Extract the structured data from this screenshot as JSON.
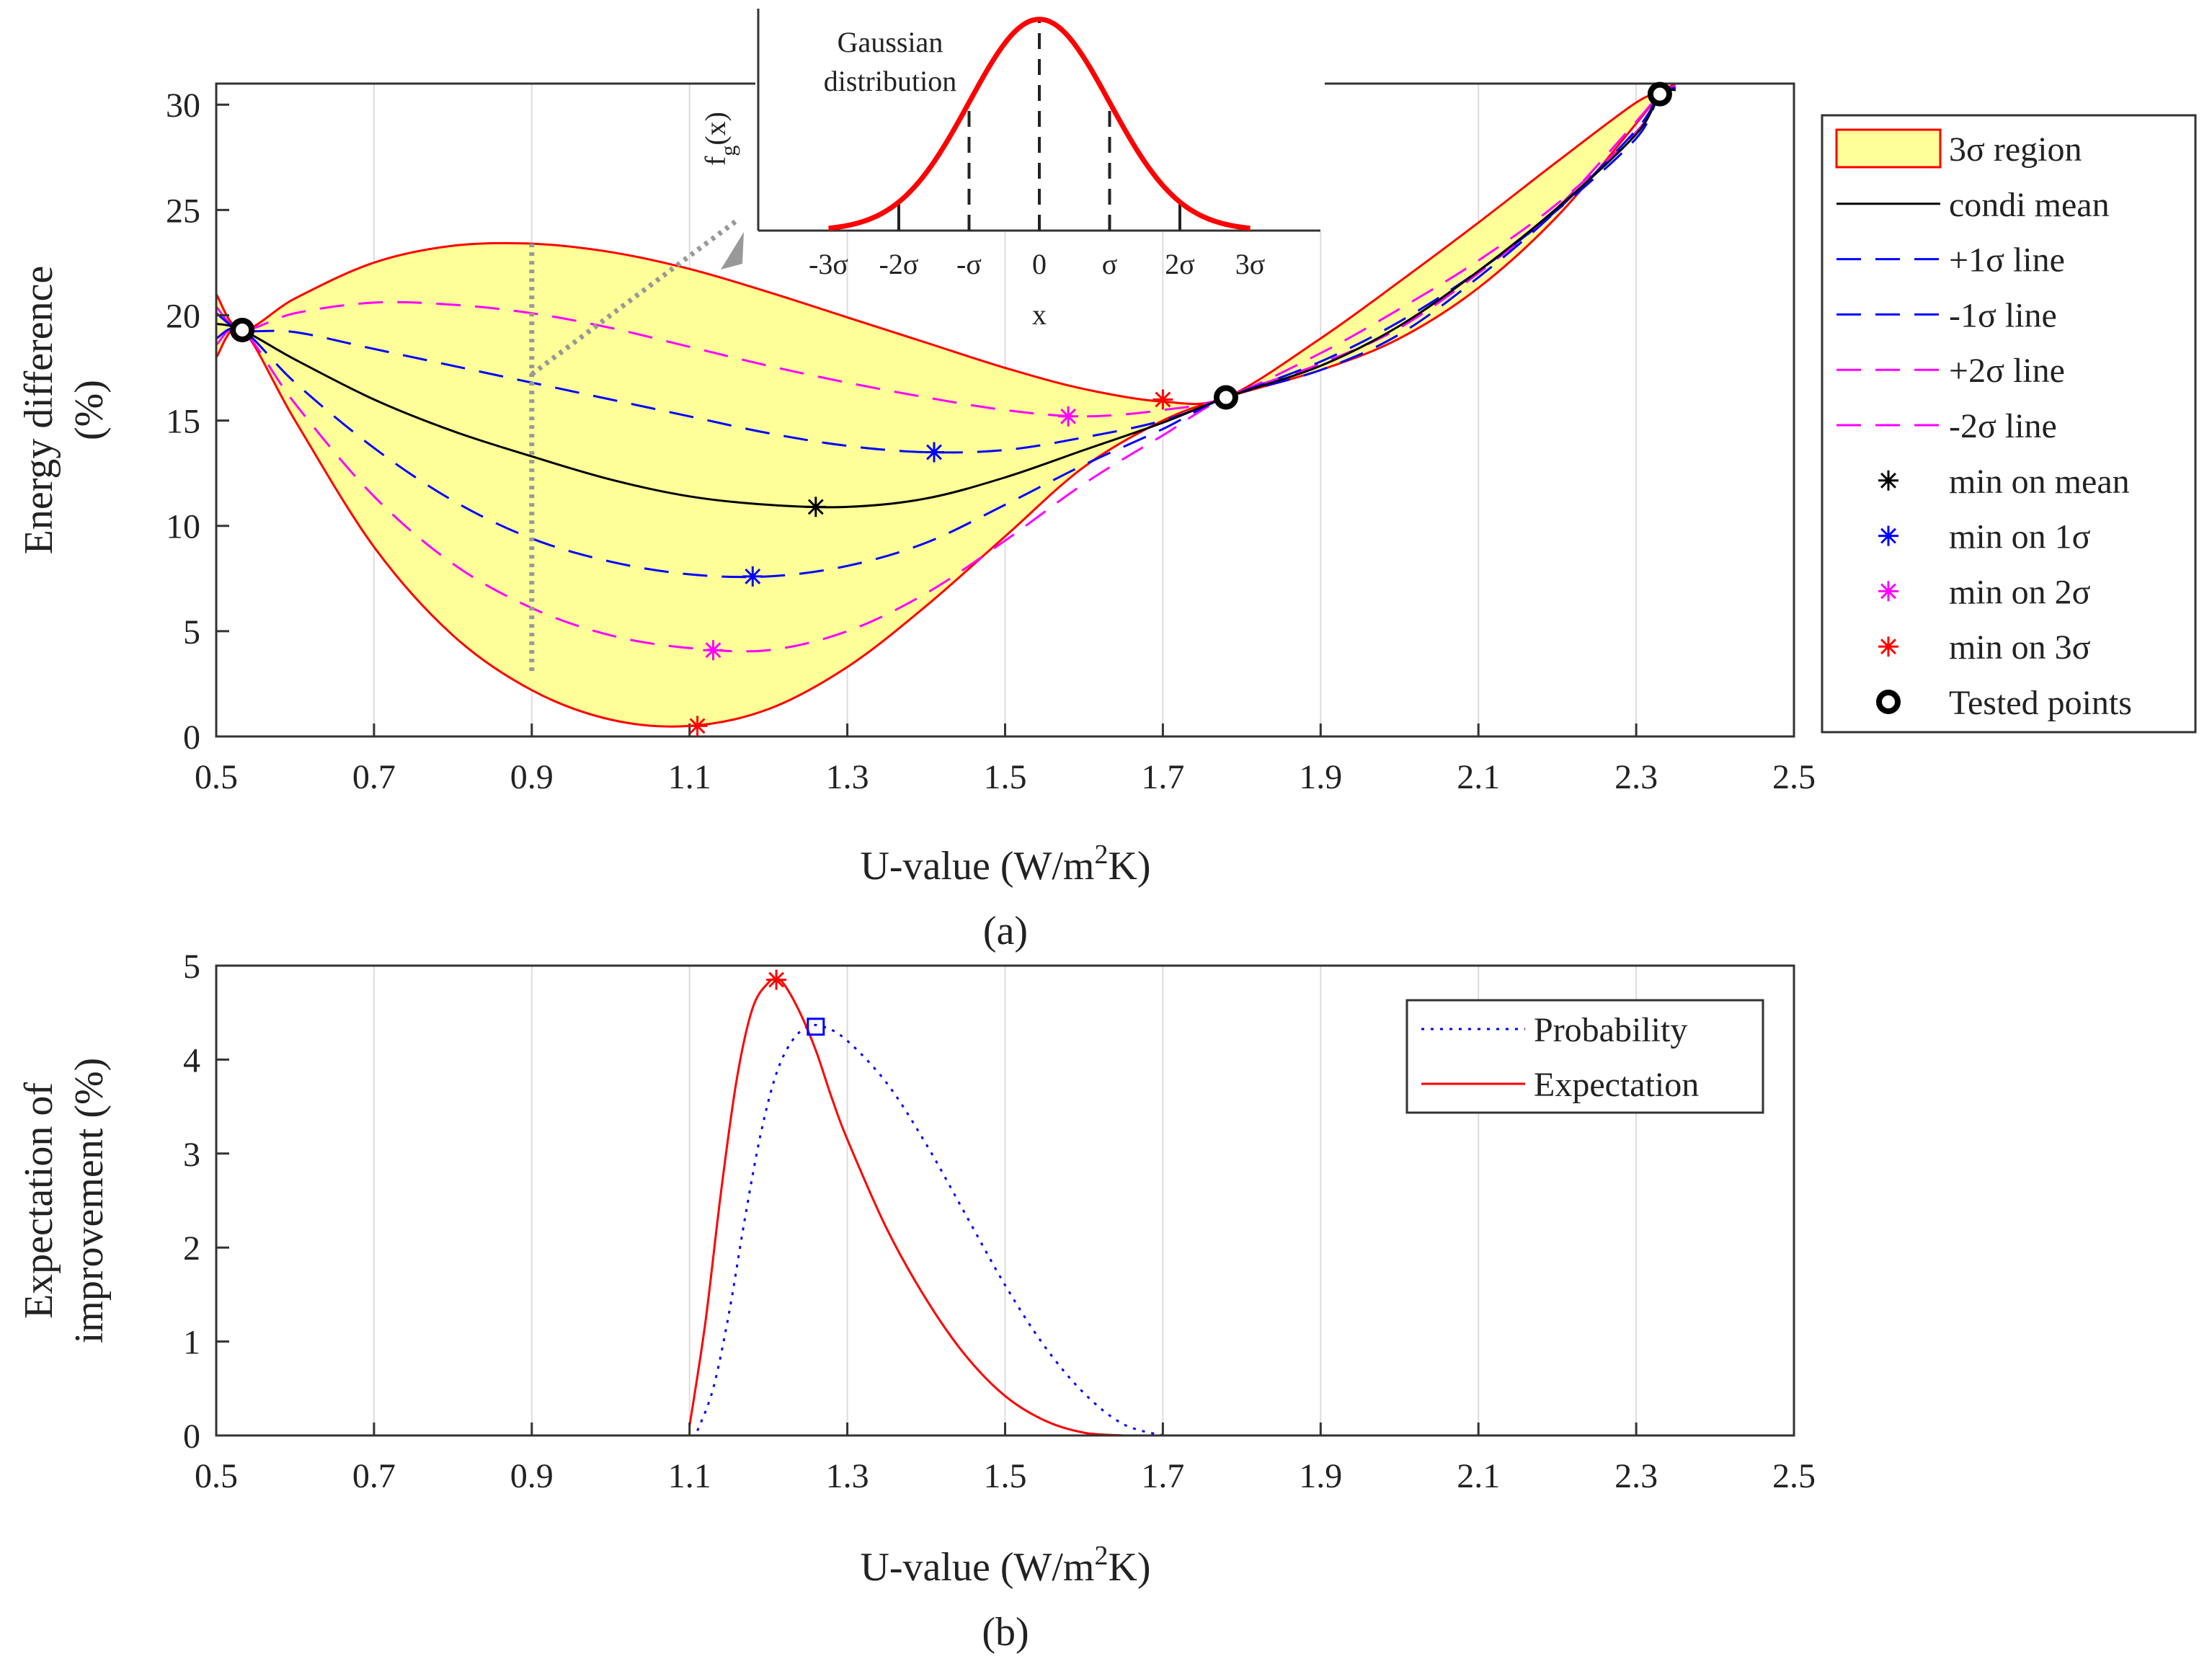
{
  "colors": {
    "fill": "#ffff99",
    "red": "#ff0000",
    "blue": "#0000ff",
    "magenta": "#ff00ff",
    "black": "#000000",
    "gray": "#999999",
    "grid": "#dddddd"
  },
  "chart_data": [
    {
      "id": "a",
      "type": "line",
      "caption": "(a)",
      "xlabel_prefix": "U-value (W/m",
      "xlabel_sup": "2",
      "xlabel_suffix": "K)",
      "ylabel_line1": "Energy difference",
      "ylabel_line2": "(%)",
      "xlim": [
        0.5,
        2.5
      ],
      "ylim": [
        0,
        31
      ],
      "xticks": [
        0.5,
        0.7,
        0.9,
        1.1,
        1.3,
        1.5,
        1.7,
        1.9,
        2.1,
        2.3,
        2.5
      ],
      "xtick_labels": [
        "0.5",
        "0.7",
        "0.9",
        "1.1",
        "1.3",
        "1.5",
        "1.7",
        "1.9",
        "2.1",
        "2.3",
        "2.5"
      ],
      "yticks": [
        0,
        5,
        10,
        15,
        20,
        25,
        30
      ],
      "ytick_labels": [
        "0",
        "5",
        "10",
        "15",
        "20",
        "25",
        "30"
      ],
      "grid_x": true,
      "x": [
        0.5,
        0.533,
        0.6,
        0.7,
        0.8,
        0.9,
        1.0,
        1.1,
        1.2,
        1.3,
        1.4,
        1.5,
        1.6,
        1.7,
        1.78,
        1.9,
        2.0,
        2.1,
        2.2,
        2.3,
        2.33,
        2.35
      ],
      "series": [
        {
          "name": "3σ region upper",
          "values": [
            21.0,
            19.3,
            20.8,
            22.5,
            23.3,
            23.4,
            23.0,
            22.2,
            21.1,
            19.9,
            18.7,
            17.5,
            16.5,
            15.9,
            16.1,
            18.9,
            21.6,
            24.4,
            27.3,
            30.1,
            30.5,
            30.8
          ]
        },
        {
          "name": "3σ region lower",
          "values": [
            18.0,
            19.3,
            15.0,
            9.0,
            4.8,
            2.2,
            0.8,
            0.5,
            1.3,
            3.3,
            6.2,
            9.5,
            12.8,
            15.0,
            16.1,
            17.4,
            18.9,
            21.3,
            24.7,
            29.1,
            30.5,
            31.0
          ]
        },
        {
          "name": "+2σ line",
          "values": [
            20.4,
            19.3,
            20.1,
            20.6,
            20.5,
            20.1,
            19.4,
            18.5,
            17.6,
            16.8,
            16.1,
            15.5,
            15.2,
            15.5,
            16.1,
            18.2,
            20.3,
            22.6,
            25.3,
            28.7,
            30.5,
            30.7
          ]
        },
        {
          "name": "-2σ line",
          "values": [
            18.6,
            19.3,
            15.8,
            11.4,
            8.2,
            6.1,
            4.8,
            4.2,
            4.1,
            5.0,
            6.8,
            9.3,
            12.0,
            14.3,
            16.1,
            17.7,
            19.4,
            22.0,
            25.1,
            29.2,
            30.5,
            30.9
          ]
        },
        {
          "name": "+1σ line",
          "values": [
            20.1,
            19.3,
            19.2,
            18.4,
            17.6,
            16.8,
            16.0,
            15.2,
            14.4,
            13.8,
            13.5,
            13.6,
            14.2,
            15.0,
            16.1,
            17.8,
            19.7,
            22.1,
            25.0,
            28.4,
            30.5,
            30.7
          ]
        },
        {
          "name": "-1σ line",
          "values": [
            18.9,
            19.3,
            16.8,
            13.7,
            11.2,
            9.4,
            8.3,
            7.7,
            7.6,
            8.1,
            9.2,
            11.0,
            12.9,
            14.6,
            16.1,
            17.4,
            19.1,
            21.8,
            25.0,
            28.8,
            30.5,
            30.8
          ]
        },
        {
          "name": "condi mean",
          "values": [
            19.6,
            19.3,
            17.9,
            16.0,
            14.5,
            13.3,
            12.2,
            11.4,
            11.0,
            10.9,
            11.3,
            12.3,
            13.6,
            14.9,
            16.1,
            17.6,
            19.5,
            22.1,
            25.1,
            28.6,
            30.5,
            30.7
          ]
        }
      ],
      "min_markers": [
        {
          "name": "min on mean",
          "x": 1.26,
          "y": 10.9,
          "color": "#000000"
        },
        {
          "name": "min on 1σ",
          "x": 1.41,
          "y": 13.5,
          "color": "#0000ff"
        },
        {
          "name": "min on 1σ",
          "x": 1.18,
          "y": 7.6,
          "color": "#0000ff"
        },
        {
          "name": "min on 2σ",
          "x": 1.58,
          "y": 15.2,
          "color": "#ff00ff"
        },
        {
          "name": "min on 2σ",
          "x": 1.13,
          "y": 4.1,
          "color": "#ff00ff"
        },
        {
          "name": "min on 3σ",
          "x": 1.7,
          "y": 16.0,
          "color": "#ff0000"
        },
        {
          "name": "min on 3σ",
          "x": 1.11,
          "y": 0.5,
          "color": "#ff0000"
        }
      ],
      "tested_points": [
        {
          "x": 0.533,
          "y": 19.3
        },
        {
          "x": 1.78,
          "y": 16.1
        },
        {
          "x": 2.33,
          "y": 30.5
        }
      ],
      "slice_x": 0.9,
      "legend": [
        {
          "label": "3σ region",
          "kind": "patch",
          "color": "#ff0000"
        },
        {
          "label": "condi mean",
          "kind": "line",
          "color": "#000000",
          "dash": ""
        },
        {
          "label": "+1σ line",
          "kind": "line",
          "color": "#0000ff",
          "dash": "34 20"
        },
        {
          "label": "-1σ line",
          "kind": "line",
          "color": "#0000ff",
          "dash": "34 20"
        },
        {
          "label": "+2σ line",
          "kind": "line",
          "color": "#ff00ff",
          "dash": "34 20"
        },
        {
          "label": "-2σ line",
          "kind": "line",
          "color": "#ff00ff",
          "dash": "34 20"
        },
        {
          "label": "min on mean",
          "kind": "star",
          "color": "#000000"
        },
        {
          "label": "min on 1σ",
          "kind": "star",
          "color": "#0000ff"
        },
        {
          "label": "min on 2σ",
          "kind": "star",
          "color": "#ff00ff"
        },
        {
          "label": "min on 3σ",
          "kind": "star",
          "color": "#ff0000"
        },
        {
          "label": "Tested points",
          "kind": "circle",
          "color": "#000000"
        }
      ],
      "legend_position": "right-outside"
    },
    {
      "id": "inset",
      "type": "line",
      "title_line1": "Gaussian",
      "title_line2": "distribution",
      "ylabel_main": "f",
      "ylabel_sub": "g",
      "ylabel_arg": "(x)",
      "xlabel": "x",
      "xlim": [
        -4,
        4
      ],
      "ylim": [
        0,
        1.05
      ],
      "xticks": [
        -3,
        -2,
        -1,
        0,
        1,
        2,
        3
      ],
      "xtick_labels": [
        "-3σ",
        "-2σ",
        "-σ",
        "0",
        "σ",
        "2σ",
        "3σ"
      ],
      "curve": "standard normal density, scaled to peak 1",
      "dashed_x": [
        -1,
        0,
        1
      ],
      "solid_x": [
        -2,
        2
      ]
    },
    {
      "id": "b",
      "type": "line",
      "caption": "(b)",
      "xlabel_prefix": "U-value (W/m",
      "xlabel_sup": "2",
      "xlabel_suffix": "K)",
      "ylabel_line1": "Expectation of",
      "ylabel_line2": "improvement (%)",
      "xlim": [
        0.5,
        2.5
      ],
      "ylim": [
        0,
        5
      ],
      "xticks": [
        0.5,
        0.7,
        0.9,
        1.1,
        1.3,
        1.5,
        1.7,
        1.9,
        2.1,
        2.3,
        2.5
      ],
      "xtick_labels": [
        "0.5",
        "0.7",
        "0.9",
        "1.1",
        "1.3",
        "1.5",
        "1.7",
        "1.9",
        "2.1",
        "2.3",
        "2.5"
      ],
      "yticks": [
        0,
        1,
        2,
        3,
        4,
        5
      ],
      "ytick_labels": [
        "0",
        "1",
        "2",
        "3",
        "4",
        "5"
      ],
      "grid_x": true,
      "series": [
        {
          "name": "Probability",
          "style": "dotted",
          "color": "#0000ff",
          "x": [
            1.11,
            1.13,
            1.15,
            1.17,
            1.19,
            1.21,
            1.23,
            1.25,
            1.27,
            1.3,
            1.35,
            1.4,
            1.45,
            1.5,
            1.55,
            1.6,
            1.65,
            1.7
          ],
          "values": [
            0.05,
            0.5,
            1.3,
            2.3,
            3.2,
            3.85,
            4.2,
            4.35,
            4.35,
            4.2,
            3.75,
            3.1,
            2.35,
            1.6,
            0.95,
            0.45,
            0.12,
            0.0
          ]
        },
        {
          "name": "Expectation",
          "style": "solid",
          "color": "#ff0000",
          "x": [
            1.1,
            1.12,
            1.14,
            1.16,
            1.18,
            1.2,
            1.21,
            1.22,
            1.24,
            1.26,
            1.28,
            1.3,
            1.35,
            1.4,
            1.45,
            1.5,
            1.55,
            1.6,
            1.65
          ],
          "values": [
            0.1,
            1.2,
            2.6,
            3.8,
            4.55,
            4.82,
            4.85,
            4.8,
            4.5,
            4.1,
            3.6,
            3.15,
            2.2,
            1.45,
            0.85,
            0.42,
            0.16,
            0.03,
            0.0
          ]
        }
      ],
      "markers": [
        {
          "name": "expectation max",
          "x": 1.21,
          "y": 4.85,
          "shape": "star",
          "color": "#ff0000"
        },
        {
          "name": "probability max",
          "x": 1.26,
          "y": 4.35,
          "shape": "square",
          "color": "#0000ff"
        }
      ],
      "legend": [
        {
          "label": "Probability",
          "kind": "dotted",
          "color": "#0000ff"
        },
        {
          "label": "Expectation",
          "kind": "solid",
          "color": "#ff0000"
        }
      ],
      "legend_position": "top-right"
    }
  ]
}
